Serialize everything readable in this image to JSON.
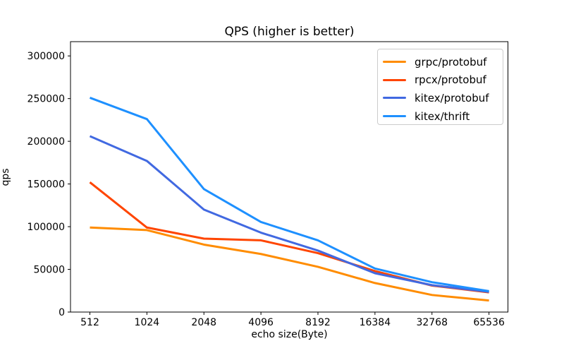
{
  "figure": {
    "title": "QPS (higher is better)"
  },
  "chart_data": {
    "type": "line",
    "title": "QPS (higher is better)",
    "xlabel": "echo size(Byte)",
    "ylabel": "qps",
    "x_scale": "categorical-log2",
    "categories": [
      "512",
      "1024",
      "2048",
      "4096",
      "8192",
      "16384",
      "32768",
      "65536"
    ],
    "yticks": [
      0,
      50000,
      100000,
      150000,
      200000,
      250000,
      300000
    ],
    "ylim": [
      0,
      316700
    ],
    "grid": false,
    "legend_position": "upper right",
    "frame_color": "#000000",
    "background_color": "#ffffff",
    "series": [
      {
        "name": "grpc/protobuf",
        "color": "#FF8C00",
        "values": [
          99000,
          96000,
          79000,
          68000,
          53000,
          34000,
          20000,
          13500
        ]
      },
      {
        "name": "rpcx/protobuf",
        "color": "#FF4500",
        "values": [
          152000,
          99000,
          86000,
          84000,
          69000,
          48000,
          31000,
          23000
        ]
      },
      {
        "name": "kitex/protobuf",
        "color": "#4169E1",
        "values": [
          206000,
          177000,
          120000,
          93000,
          72000,
          45500,
          31500,
          23700
        ]
      },
      {
        "name": "kitex/thrift",
        "color": "#1E90FF",
        "values": [
          251000,
          226000,
          144000,
          105500,
          84000,
          51000,
          35000,
          24500
        ]
      }
    ]
  }
}
